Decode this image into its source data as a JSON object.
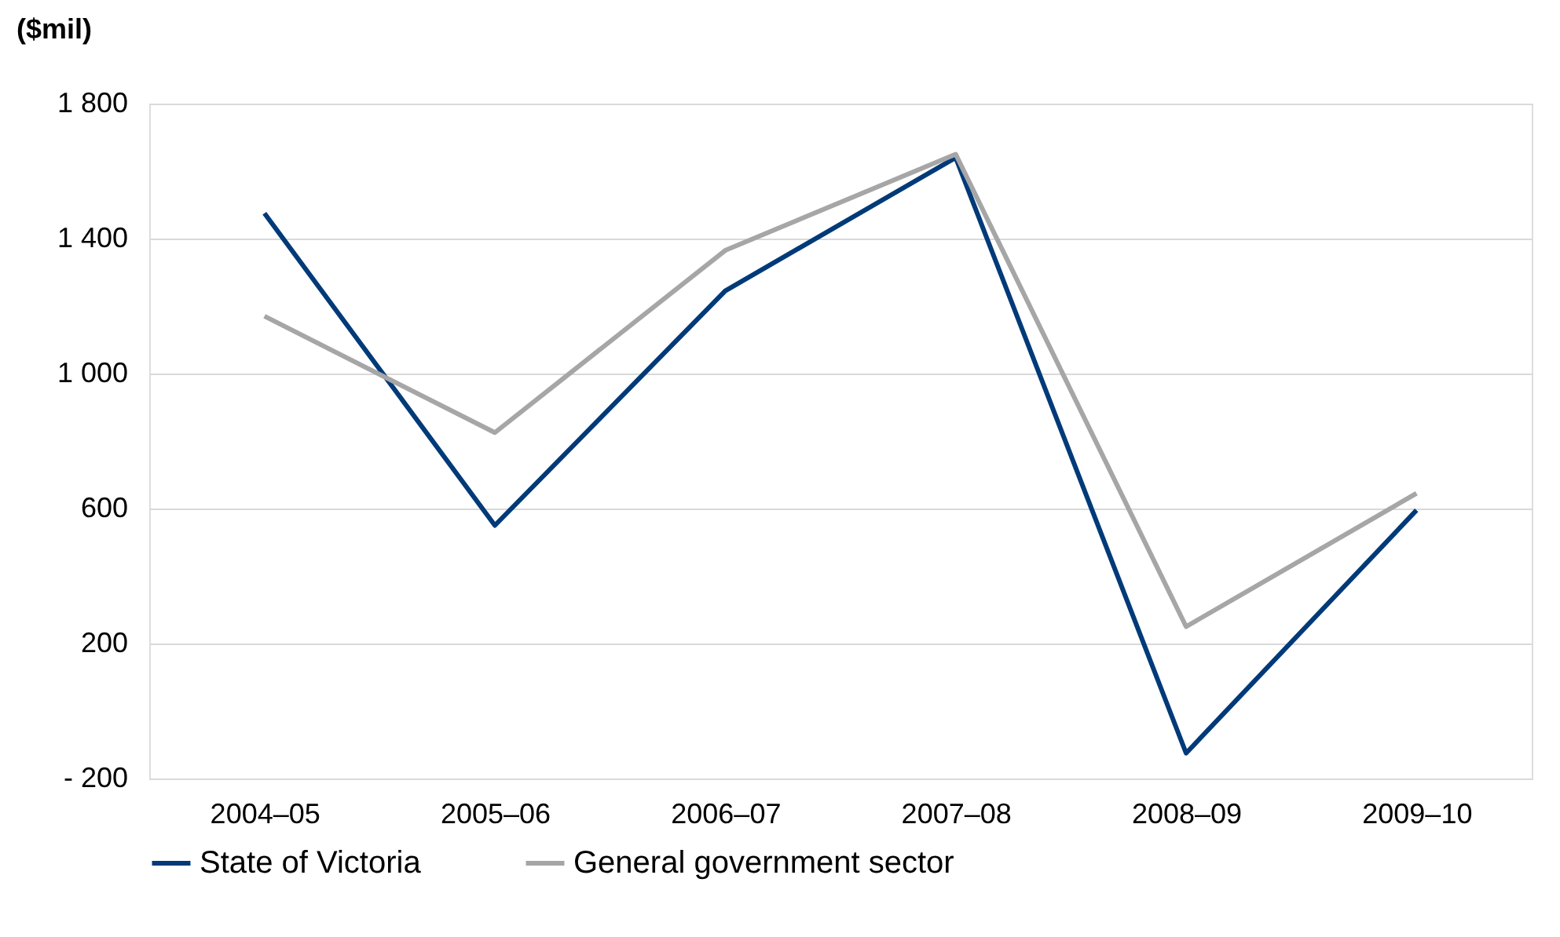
{
  "chart_data": {
    "type": "line",
    "ylabel": "($mil)",
    "categories": [
      "2004–05",
      "2005–06",
      "2006–07",
      "2007–08",
      "2008–09",
      "2009–10"
    ],
    "series": [
      {
        "name": "State of Victoria",
        "color": "#003a78",
        "values": [
          1475,
          550,
          1245,
          1640,
          -125,
          595
        ]
      },
      {
        "name": "General government sector",
        "color": "#a6a6a6",
        "values": [
          1170,
          825,
          1365,
          1650,
          250,
          645
        ]
      }
    ],
    "ylim": [
      -200,
      1800
    ],
    "yticks": [
      {
        "value": -200,
        "label": "- 200"
      },
      200,
      600,
      {
        "value": 1000,
        "label": "1 000"
      },
      {
        "value": 1400,
        "label": "1 400"
      },
      {
        "value": 1800,
        "label": "1 800"
      }
    ],
    "grid": "y",
    "legend": "bottom",
    "marker": "none",
    "line_style": "solid"
  }
}
